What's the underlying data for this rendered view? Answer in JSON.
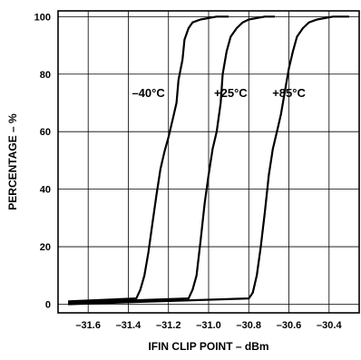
{
  "chart_data": {
    "type": "line",
    "title": "",
    "xlabel": "IFIN CLIP POINT – dBm",
    "ylabel": "PERCENTAGE – %",
    "xlim": [
      -31.75,
      -30.25
    ],
    "ylim": [
      -3,
      102
    ],
    "x_ticks": [
      -31.6,
      -31.4,
      -31.2,
      -31.0,
      -30.8,
      -30.6,
      -30.4
    ],
    "x_tick_labels": [
      "–31.6",
      "–31.4",
      "–31.2",
      "–31.0",
      "–30.8",
      "–30.6",
      "–30.4"
    ],
    "y_ticks": [
      0,
      20,
      40,
      60,
      80,
      100
    ],
    "y_tick_labels": [
      "0",
      "20",
      "40",
      "60",
      "80",
      "100"
    ],
    "grid": true,
    "legend": "none",
    "line_color": "#000000",
    "series": [
      {
        "name": "–40°C",
        "points": [
          [
            -31.7,
            1
          ],
          [
            -31.36,
            2
          ],
          [
            -31.34,
            5
          ],
          [
            -31.32,
            10
          ],
          [
            -31.3,
            18
          ],
          [
            -31.28,
            28
          ],
          [
            -31.26,
            38
          ],
          [
            -31.24,
            47
          ],
          [
            -31.22,
            53
          ],
          [
            -31.2,
            58
          ],
          [
            -31.18,
            64
          ],
          [
            -31.16,
            70
          ],
          [
            -31.15,
            78
          ],
          [
            -31.13,
            85
          ],
          [
            -31.12,
            92
          ],
          [
            -31.1,
            96
          ],
          [
            -31.08,
            98
          ],
          [
            -31.04,
            99
          ],
          [
            -30.96,
            100
          ],
          [
            -30.9,
            100
          ]
        ]
      },
      {
        "name": "+25°C",
        "points": [
          [
            -31.7,
            0.5
          ],
          [
            -31.1,
            2
          ],
          [
            -31.08,
            5
          ],
          [
            -31.06,
            10
          ],
          [
            -31.04,
            22
          ],
          [
            -31.02,
            35
          ],
          [
            -31.0,
            45
          ],
          [
            -30.98,
            54
          ],
          [
            -30.96,
            60
          ],
          [
            -30.94,
            70
          ],
          [
            -30.93,
            80
          ],
          [
            -30.91,
            88
          ],
          [
            -30.89,
            93
          ],
          [
            -30.86,
            96
          ],
          [
            -30.83,
            98
          ],
          [
            -30.8,
            99
          ],
          [
            -30.72,
            100
          ],
          [
            -30.67,
            100
          ]
        ]
      },
      {
        "name": "+85°C",
        "points": [
          [
            -31.7,
            0
          ],
          [
            -30.8,
            2
          ],
          [
            -30.78,
            4
          ],
          [
            -30.76,
            10
          ],
          [
            -30.74,
            20
          ],
          [
            -30.72,
            32
          ],
          [
            -30.7,
            45
          ],
          [
            -30.68,
            54
          ],
          [
            -30.66,
            60
          ],
          [
            -30.64,
            66
          ],
          [
            -30.62,
            74
          ],
          [
            -30.6,
            82
          ],
          [
            -30.58,
            88
          ],
          [
            -30.56,
            93
          ],
          [
            -30.53,
            96
          ],
          [
            -30.5,
            98
          ],
          [
            -30.46,
            99
          ],
          [
            -30.38,
            100
          ],
          [
            -30.3,
            100
          ]
        ]
      }
    ],
    "annotations": [
      {
        "text": "–40°C",
        "x": -31.3,
        "y": 72
      },
      {
        "text": "+25°C",
        "x": -30.89,
        "y": 72
      },
      {
        "text": "+85°C",
        "x": -30.6,
        "y": 72
      }
    ]
  }
}
